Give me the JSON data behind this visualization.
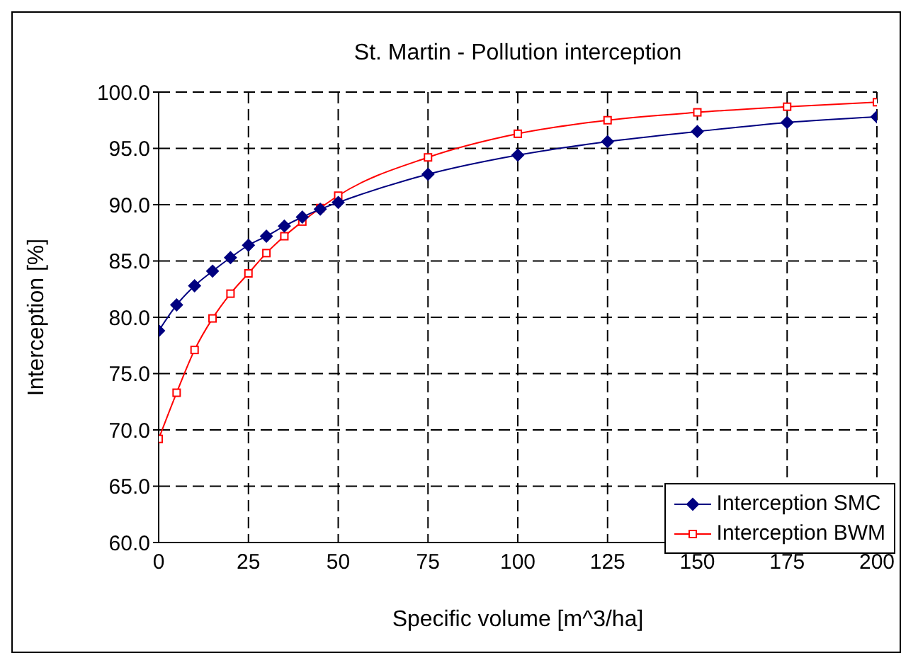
{
  "chart_data": {
    "type": "line",
    "title": "St. Martin - Pollution interception",
    "xlabel": "Specific volume [m^3/ha]",
    "ylabel": "Interception [%]",
    "x": [
      0,
      5,
      10,
      15,
      20,
      25,
      30,
      35,
      40,
      45,
      50,
      75,
      100,
      125,
      150,
      175,
      200
    ],
    "series": [
      {
        "name": "Interception SMC",
        "color": "#000080",
        "marker": "diamond",
        "values": [
          78.8,
          81.1,
          82.8,
          84.1,
          85.3,
          86.4,
          87.2,
          88.1,
          88.9,
          89.6,
          90.2,
          92.7,
          94.4,
          95.6,
          96.5,
          97.3,
          97.8
        ]
      },
      {
        "name": "Interception BWM",
        "color": "#ff0000",
        "marker": "square",
        "values": [
          69.2,
          73.3,
          77.1,
          79.9,
          82.1,
          83.9,
          85.7,
          87.2,
          88.5,
          89.7,
          90.8,
          94.2,
          96.3,
          97.5,
          98.2,
          98.7,
          99.1
        ]
      }
    ],
    "xlim": [
      0,
      200
    ],
    "xticks": [
      0,
      25,
      50,
      75,
      100,
      125,
      150,
      175,
      200
    ],
    "ylim": [
      60,
      100
    ],
    "yticks": [
      {
        "value": 60,
        "label": "60.0"
      },
      {
        "value": 65,
        "label": "65.0"
      },
      {
        "value": 70,
        "label": "70.0"
      },
      {
        "value": 75,
        "label": "75.0"
      },
      {
        "value": 80,
        "label": "80.0"
      },
      {
        "value": 85,
        "label": "85.0"
      },
      {
        "value": 90,
        "label": "90.0"
      },
      {
        "value": 95,
        "label": "95.0"
      },
      {
        "value": 100,
        "label": "100.0"
      }
    ],
    "grid": true,
    "legend": "bottom right",
    "line_style": "solid"
  }
}
